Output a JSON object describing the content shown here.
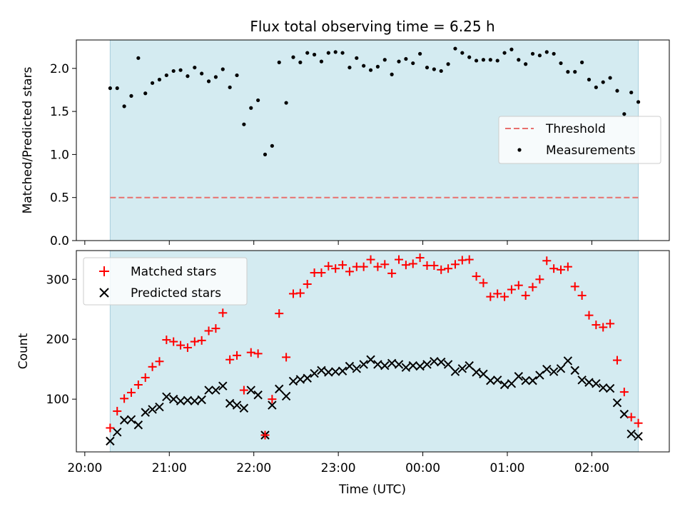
{
  "title": "Flux total observing time = 6.25 h",
  "colors": {
    "shade": "#d4ebf1",
    "threshold": "#e8706e",
    "measurement": "#000000",
    "matched": "#ff0000",
    "predicted": "#000000"
  },
  "chart_data": [
    {
      "type": "scatter",
      "ylabel": "Matched/Predicted stars",
      "ylim": [
        0,
        2.33
      ],
      "yticks": [
        "0.0",
        "0.5",
        "1.0",
        "1.5",
        "2.0"
      ],
      "observing_window": [
        "20:18",
        "02:33"
      ],
      "threshold": {
        "name": "Threshold",
        "value": 0.5
      },
      "legend": {
        "position": "right",
        "entries": [
          "Threshold",
          "Measurements"
        ]
      },
      "series": [
        {
          "name": "Measurements",
          "x": [
            "20:18",
            "20:23",
            "20:28",
            "20:33",
            "20:38",
            "20:43",
            "20:48",
            "20:53",
            "20:58",
            "21:03",
            "21:08",
            "21:13",
            "21:18",
            "21:23",
            "21:28",
            "21:33",
            "21:38",
            "21:43",
            "21:48",
            "21:53",
            "21:58",
            "22:03",
            "22:08",
            "22:13",
            "22:18",
            "22:23",
            "22:28",
            "22:33",
            "22:38",
            "22:43",
            "22:48",
            "22:53",
            "22:58",
            "23:03",
            "23:08",
            "23:13",
            "23:18",
            "23:23",
            "23:28",
            "23:33",
            "23:38",
            "23:43",
            "23:48",
            "23:53",
            "23:58",
            "00:03",
            "00:08",
            "00:13",
            "00:18",
            "00:23",
            "00:28",
            "00:33",
            "00:38",
            "00:43",
            "00:48",
            "00:53",
            "00:58",
            "01:03",
            "01:08",
            "01:13",
            "01:18",
            "01:23",
            "01:28",
            "01:33",
            "01:38",
            "01:43",
            "01:48",
            "01:53",
            "01:58",
            "02:03",
            "02:08",
            "02:13",
            "02:18",
            "02:23",
            "02:28",
            "02:33"
          ],
          "y": [
            1.77,
            1.77,
            1.56,
            1.68,
            2.12,
            1.71,
            1.83,
            1.87,
            1.92,
            1.97,
            1.98,
            1.91,
            2.01,
            1.94,
            1.85,
            1.9,
            1.99,
            1.78,
            1.92,
            1.35,
            1.54,
            1.63,
            1.0,
            1.1,
            2.07,
            1.6,
            2.13,
            2.07,
            2.18,
            2.16,
            2.08,
            2.18,
            2.19,
            2.18,
            2.01,
            2.12,
            2.03,
            1.98,
            2.02,
            2.1,
            1.93,
            2.08,
            2.11,
            2.06,
            2.17,
            2.01,
            1.99,
            1.97,
            2.05,
            2.23,
            2.18,
            2.13,
            2.09,
            2.1,
            2.1,
            2.09,
            2.18,
            2.22,
            2.1,
            2.05,
            2.17,
            2.15,
            2.19,
            2.17,
            2.06,
            1.96,
            1.96,
            2.07,
            1.87,
            1.78,
            1.84,
            1.89,
            1.74,
            1.47,
            1.72,
            1.61
          ]
        }
      ]
    },
    {
      "type": "scatter",
      "xlabel": "Time (UTC)",
      "ylabel": "Count",
      "ylim": [
        12,
        348
      ],
      "yticks": [
        "100",
        "200",
        "300"
      ],
      "xticks": [
        "20:00",
        "21:00",
        "22:00",
        "23:00",
        "00:00",
        "01:00",
        "02:00"
      ],
      "observing_window": [
        "20:18",
        "02:33"
      ],
      "legend": {
        "position": "top-left",
        "entries": [
          "Matched stars",
          "Predicted stars"
        ]
      },
      "series": [
        {
          "name": "Matched stars",
          "x": [
            "20:18",
            "20:23",
            "20:28",
            "20:33",
            "20:38",
            "20:43",
            "20:48",
            "20:53",
            "20:58",
            "21:03",
            "21:08",
            "21:13",
            "21:18",
            "21:23",
            "21:28",
            "21:33",
            "21:38",
            "21:43",
            "21:48",
            "21:53",
            "21:58",
            "22:03",
            "22:08",
            "22:13",
            "22:18",
            "22:23",
            "22:28",
            "22:33",
            "22:38",
            "22:43",
            "22:48",
            "22:53",
            "22:58",
            "23:03",
            "23:08",
            "23:13",
            "23:18",
            "23:23",
            "23:28",
            "23:33",
            "23:38",
            "23:43",
            "23:48",
            "23:53",
            "23:58",
            "00:03",
            "00:08",
            "00:13",
            "00:18",
            "00:23",
            "00:28",
            "00:33",
            "00:38",
            "00:43",
            "00:48",
            "00:53",
            "00:58",
            "01:03",
            "01:08",
            "01:13",
            "01:18",
            "01:23",
            "01:28",
            "01:33",
            "01:38",
            "01:43",
            "01:48",
            "01:53",
            "01:58",
            "02:03",
            "02:08",
            "02:13",
            "02:18",
            "02:23",
            "02:28",
            "02:33"
          ],
          "y": [
            52,
            80,
            101,
            111,
            124,
            136,
            154,
            163,
            199,
            196,
            190,
            186,
            196,
            198,
            214,
            218,
            244,
            166,
            173,
            115,
            178,
            176,
            40,
            100,
            243,
            170,
            276,
            277,
            292,
            311,
            311,
            322,
            318,
            324,
            313,
            321,
            321,
            333,
            321,
            325,
            310,
            333,
            324,
            326,
            336,
            323,
            323,
            316,
            318,
            325,
            332,
            333,
            305,
            294,
            271,
            276,
            271,
            283,
            290,
            273,
            287,
            300,
            331,
            318,
            316,
            321,
            288,
            273,
            240,
            224,
            220,
            226,
            165,
            112,
            70,
            60
          ]
        },
        {
          "name": "Predicted stars",
          "x": [
            "20:18",
            "20:23",
            "20:28",
            "20:33",
            "20:38",
            "20:43",
            "20:48",
            "20:53",
            "20:58",
            "21:03",
            "21:08",
            "21:13",
            "21:18",
            "21:23",
            "21:28",
            "21:33",
            "21:38",
            "21:43",
            "21:48",
            "21:53",
            "21:58",
            "22:03",
            "22:08",
            "22:13",
            "22:18",
            "22:23",
            "22:28",
            "22:33",
            "22:38",
            "22:43",
            "22:48",
            "22:53",
            "22:58",
            "23:03",
            "23:08",
            "23:13",
            "23:18",
            "23:23",
            "23:28",
            "23:33",
            "23:38",
            "23:43",
            "23:48",
            "23:53",
            "23:58",
            "00:03",
            "00:08",
            "00:13",
            "00:18",
            "00:23",
            "00:28",
            "00:33",
            "00:38",
            "00:43",
            "00:48",
            "00:53",
            "00:58",
            "01:03",
            "01:08",
            "01:13",
            "01:18",
            "01:23",
            "01:28",
            "01:33",
            "01:38",
            "01:43",
            "01:48",
            "01:53",
            "01:58",
            "02:03",
            "02:08",
            "02:13",
            "02:18",
            "02:23",
            "02:28",
            "02:33"
          ],
          "y": [
            30,
            45,
            65,
            66,
            57,
            78,
            83,
            87,
            104,
            100,
            97,
            98,
            97,
            99,
            115,
            115,
            122,
            93,
            90,
            85,
            115,
            107,
            40,
            90,
            117,
            105,
            130,
            133,
            135,
            143,
            148,
            145,
            146,
            147,
            155,
            151,
            158,
            166,
            158,
            156,
            160,
            158,
            153,
            156,
            155,
            158,
            163,
            162,
            158,
            146,
            151,
            156,
            145,
            142,
            131,
            132,
            124,
            126,
            138,
            131,
            131,
            140,
            150,
            146,
            151,
            164,
            148,
            132,
            128,
            126,
            119,
            118,
            94,
            75,
            42,
            38
          ]
        }
      ]
    }
  ]
}
